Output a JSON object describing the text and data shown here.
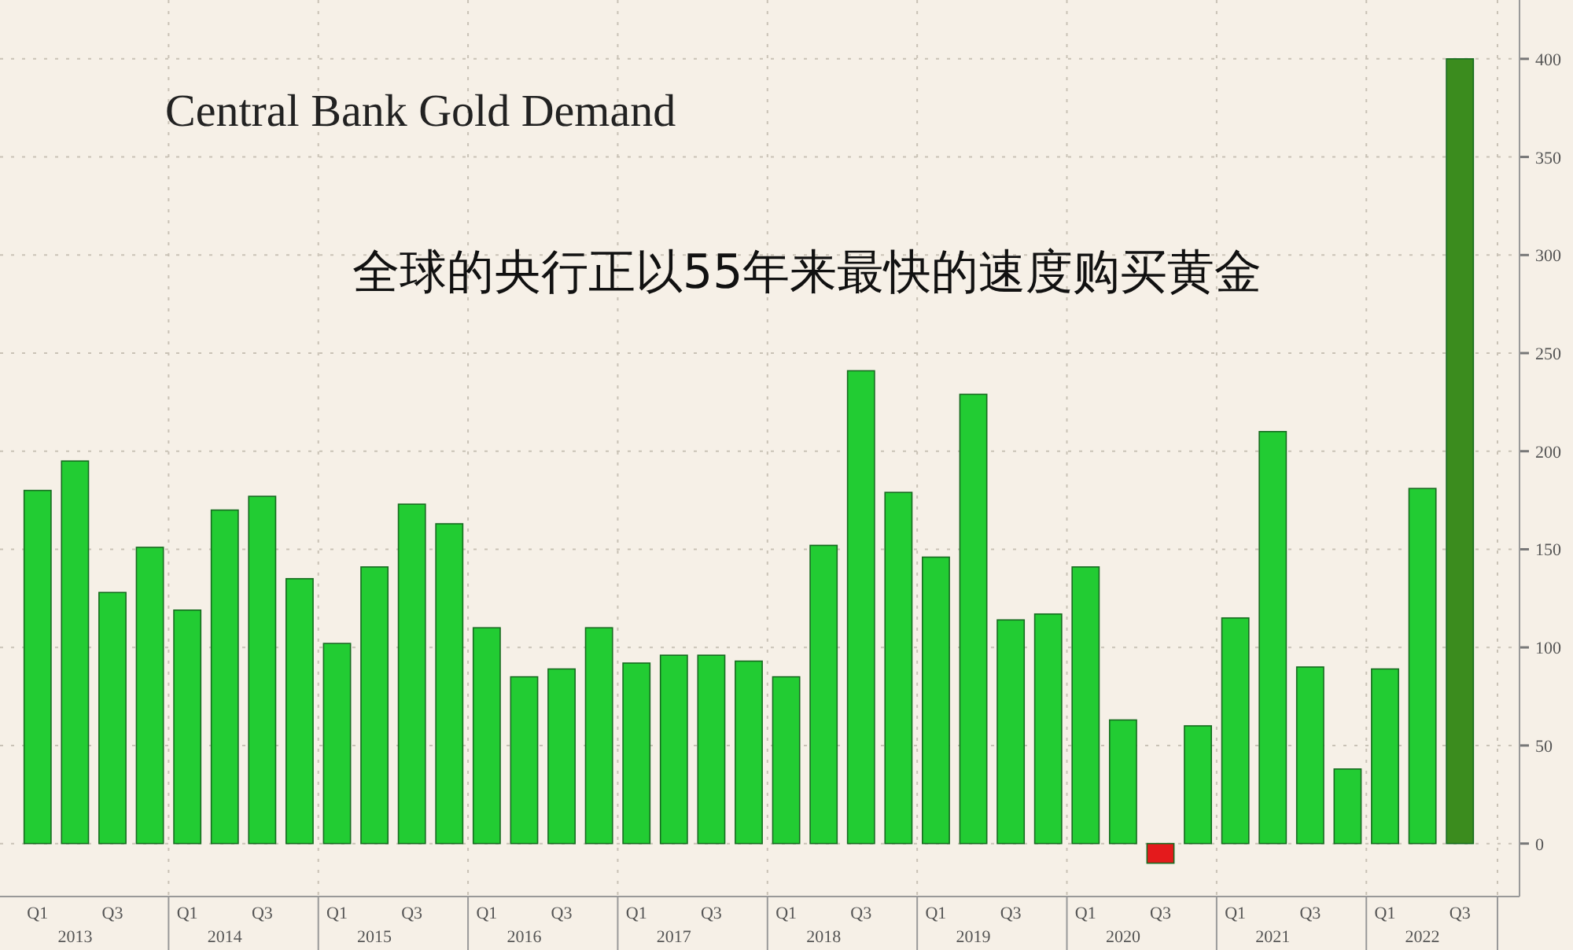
{
  "chart_data": {
    "type": "bar",
    "title": "Central Bank Gold Demand",
    "subtitle": "全球的央行正以55年来最快的速度购买黄金",
    "categories": [
      "Q1",
      null,
      "Q3",
      null,
      "Q1",
      null,
      "Q3",
      null,
      "Q1",
      null,
      "Q3",
      null,
      "Q1",
      null,
      "Q3",
      null,
      "Q1",
      null,
      "Q3",
      null,
      "Q1",
      null,
      "Q3",
      null,
      "Q1",
      null,
      "Q3",
      null,
      "Q1",
      null,
      "Q3",
      null,
      "Q1",
      null,
      "Q3",
      null,
      "Q1",
      null,
      "Q3"
    ],
    "values": [
      180,
      195,
      128,
      151,
      119,
      170,
      177,
      135,
      102,
      141,
      173,
      163,
      110,
      85,
      89,
      110,
      92,
      96,
      96,
      93,
      85,
      152,
      241,
      179,
      146,
      229,
      114,
      117,
      141,
      63,
      -10,
      60,
      115,
      210,
      90,
      38,
      89,
      181,
      400
    ],
    "colors": [
      "#22cc33",
      "#22cc33",
      "#22cc33",
      "#22cc33",
      "#22cc33",
      "#22cc33",
      "#22cc33",
      "#22cc33",
      "#22cc33",
      "#22cc33",
      "#22cc33",
      "#22cc33",
      "#22cc33",
      "#22cc33",
      "#22cc33",
      "#22cc33",
      "#22cc33",
      "#22cc33",
      "#22cc33",
      "#22cc33",
      "#22cc33",
      "#22cc33",
      "#22cc33",
      "#22cc33",
      "#22cc33",
      "#22cc33",
      "#22cc33",
      "#22cc33",
      "#22cc33",
      "#22cc33",
      "#e41a1c",
      "#22cc33",
      "#22cc33",
      "#22cc33",
      "#22cc33",
      "#22cc33",
      "#22cc33",
      "#22cc33",
      "#3b8c1e"
    ],
    "annotations": [
      "2013",
      "2014",
      "2015",
      "2016",
      "2017",
      "2018",
      "2019",
      "2020",
      "2021",
      "2022"
    ],
    "ylim": [
      -27,
      430
    ],
    "yticks": [
      0,
      50,
      100,
      150,
      200,
      250,
      300,
      350,
      400
    ],
    "grid": true
  }
}
